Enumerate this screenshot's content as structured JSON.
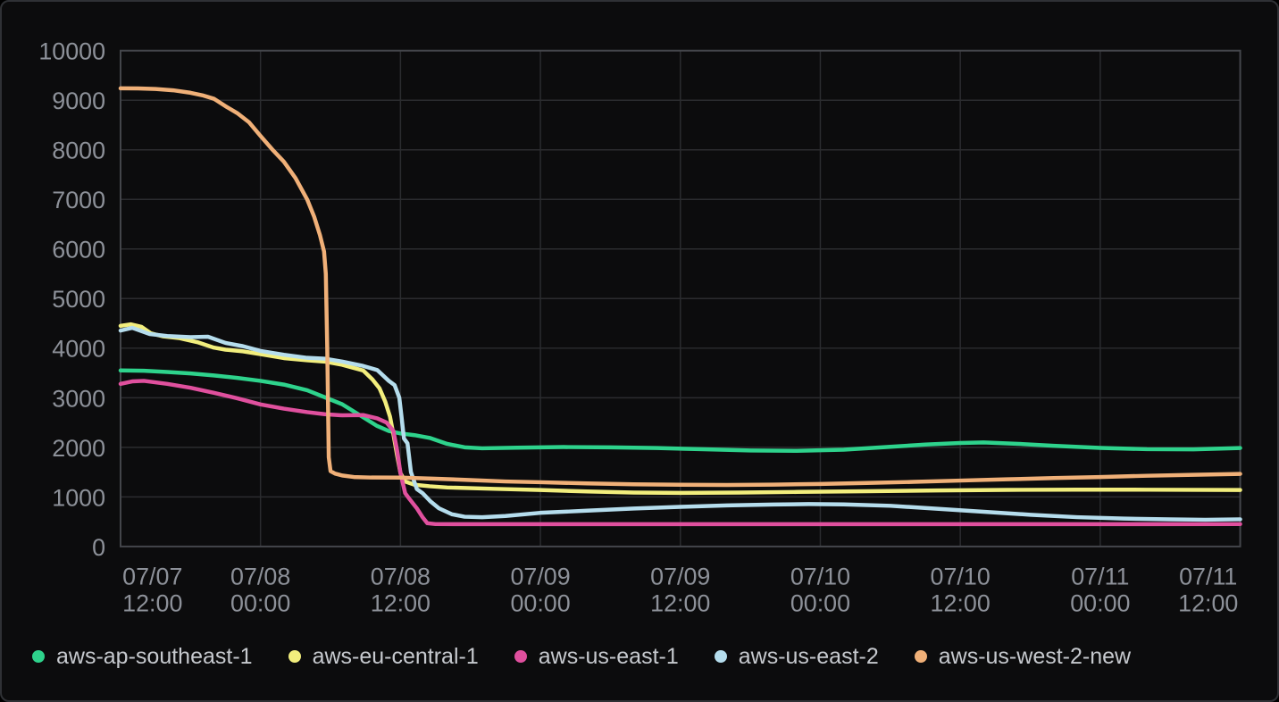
{
  "panel": {
    "background": "#0c0c0d",
    "border_color": "#2f3135",
    "grid_color": "#2b2c2f",
    "plot_border_color": "#44464b",
    "axis_text_color": "#8d9199",
    "legend_text_color": "#c6c9ce"
  },
  "chart_data": {
    "type": "line",
    "title": "",
    "xlabel": "",
    "ylabel": "",
    "grid": true,
    "legend_position": "bottom",
    "x_unit": "hours since 07/07 12:00",
    "x_range_hours": [
      0,
      96
    ],
    "y_range": [
      0,
      10000
    ],
    "y_ticks": [
      0,
      1000,
      2000,
      3000,
      4000,
      5000,
      6000,
      7000,
      8000,
      9000,
      10000
    ],
    "x_ticks": [
      {
        "hours": 0,
        "date": "07/07",
        "time": "12:00"
      },
      {
        "hours": 12,
        "date": "07/08",
        "time": "00:00"
      },
      {
        "hours": 24,
        "date": "07/08",
        "time": "12:00"
      },
      {
        "hours": 36,
        "date": "07/09",
        "time": "00:00"
      },
      {
        "hours": 48,
        "date": "07/09",
        "time": "12:00"
      },
      {
        "hours": 60,
        "date": "07/10",
        "time": "00:00"
      },
      {
        "hours": 72,
        "date": "07/10",
        "time": "12:00"
      },
      {
        "hours": 84,
        "date": "07/11",
        "time": "00:00"
      },
      {
        "hours": 96,
        "date": "07/11",
        "time": "12:00"
      }
    ],
    "series": [
      {
        "name": "aws-ap-southeast-1",
        "color": "#2ed38c",
        "points": [
          [
            0,
            3550
          ],
          [
            2,
            3545
          ],
          [
            4,
            3520
          ],
          [
            6,
            3490
          ],
          [
            8,
            3450
          ],
          [
            10,
            3400
          ],
          [
            12,
            3340
          ],
          [
            14,
            3265
          ],
          [
            16,
            3150
          ],
          [
            17.5,
            3010
          ],
          [
            19,
            2870
          ],
          [
            20.5,
            2650
          ],
          [
            22,
            2430
          ],
          [
            23,
            2330
          ],
          [
            24,
            2280
          ],
          [
            25.2,
            2245
          ],
          [
            26.5,
            2190
          ],
          [
            28,
            2070
          ],
          [
            29.5,
            2000
          ],
          [
            31,
            1980
          ],
          [
            34,
            1992
          ],
          [
            38,
            2005
          ],
          [
            42,
            2000
          ],
          [
            46,
            1985
          ],
          [
            50,
            1960
          ],
          [
            54,
            1938
          ],
          [
            58,
            1930
          ],
          [
            62,
            1952
          ],
          [
            66,
            2010
          ],
          [
            69,
            2055
          ],
          [
            72,
            2088
          ],
          [
            74,
            2098
          ],
          [
            77,
            2070
          ],
          [
            80,
            2030
          ],
          [
            84,
            1988
          ],
          [
            88,
            1962
          ],
          [
            92,
            1958
          ],
          [
            96,
            1985
          ]
        ]
      },
      {
        "name": "aws-eu-central-1",
        "color": "#f2ee7d",
        "points": [
          [
            0,
            4450
          ],
          [
            0.9,
            4480
          ],
          [
            1.8,
            4430
          ],
          [
            2.6,
            4300
          ],
          [
            3.6,
            4240
          ],
          [
            5,
            4205
          ],
          [
            6.6,
            4120
          ],
          [
            8,
            4010
          ],
          [
            9,
            3970
          ],
          [
            10.5,
            3935
          ],
          [
            12,
            3880
          ],
          [
            14,
            3800
          ],
          [
            16,
            3755
          ],
          [
            17.5,
            3730
          ],
          [
            19,
            3665
          ],
          [
            20.8,
            3550
          ],
          [
            21.6,
            3370
          ],
          [
            22.2,
            3190
          ],
          [
            22.7,
            2920
          ],
          [
            23.1,
            2620
          ],
          [
            23.4,
            2260
          ],
          [
            23.7,
            1850
          ],
          [
            24,
            1480
          ],
          [
            24.4,
            1310
          ],
          [
            25.2,
            1245
          ],
          [
            26.5,
            1215
          ],
          [
            28,
            1190
          ],
          [
            32,
            1163
          ],
          [
            36,
            1140
          ],
          [
            40,
            1110
          ],
          [
            44,
            1088
          ],
          [
            48,
            1080
          ],
          [
            53,
            1088
          ],
          [
            58,
            1100
          ],
          [
            64,
            1115
          ],
          [
            70,
            1130
          ],
          [
            76,
            1142
          ],
          [
            82,
            1147
          ],
          [
            88,
            1145
          ],
          [
            96,
            1140
          ]
        ]
      },
      {
        "name": "aws-us-east-1",
        "color": "#e0509e",
        "points": [
          [
            0,
            3280
          ],
          [
            1,
            3330
          ],
          [
            2,
            3340
          ],
          [
            4,
            3280
          ],
          [
            6,
            3200
          ],
          [
            8,
            3100
          ],
          [
            10,
            2990
          ],
          [
            12,
            2865
          ],
          [
            14,
            2780
          ],
          [
            16,
            2710
          ],
          [
            17.5,
            2668
          ],
          [
            19,
            2645
          ],
          [
            20.8,
            2650
          ],
          [
            22,
            2585
          ],
          [
            22.8,
            2500
          ],
          [
            23.4,
            2330
          ],
          [
            23.7,
            1950
          ],
          [
            24,
            1480
          ],
          [
            24.4,
            1075
          ],
          [
            24.8,
            950
          ],
          [
            25.4,
            770
          ],
          [
            25.9,
            590
          ],
          [
            26.3,
            470
          ],
          [
            27,
            452
          ],
          [
            32,
            450
          ],
          [
            40,
            450
          ],
          [
            48,
            450
          ],
          [
            56,
            450
          ],
          [
            64,
            450
          ],
          [
            72,
            450
          ],
          [
            80,
            450
          ],
          [
            88,
            450
          ],
          [
            96,
            452
          ]
        ]
      },
      {
        "name": "aws-us-east-2",
        "color": "#b5dded",
        "points": [
          [
            0,
            4355
          ],
          [
            1,
            4410
          ],
          [
            2.5,
            4285
          ],
          [
            4,
            4245
          ],
          [
            6,
            4222
          ],
          [
            7.5,
            4232
          ],
          [
            9,
            4105
          ],
          [
            10.5,
            4040
          ],
          [
            12,
            3945
          ],
          [
            14,
            3868
          ],
          [
            16,
            3805
          ],
          [
            17.5,
            3788
          ],
          [
            19,
            3730
          ],
          [
            20.8,
            3642
          ],
          [
            22,
            3560
          ],
          [
            23,
            3340
          ],
          [
            23.5,
            3255
          ],
          [
            23.9,
            3000
          ],
          [
            24.1,
            2600
          ],
          [
            24.3,
            2180
          ],
          [
            24.6,
            2080
          ],
          [
            24.9,
            1500
          ],
          [
            25.4,
            1160
          ],
          [
            25.9,
            1075
          ],
          [
            26.6,
            905
          ],
          [
            27.3,
            770
          ],
          [
            28.4,
            650
          ],
          [
            29.5,
            600
          ],
          [
            31,
            590
          ],
          [
            33,
            615
          ],
          [
            36,
            680
          ],
          [
            40,
            722
          ],
          [
            44,
            765
          ],
          [
            48,
            800
          ],
          [
            52,
            828
          ],
          [
            56,
            845
          ],
          [
            59,
            855
          ],
          [
            62,
            850
          ],
          [
            66,
            820
          ],
          [
            70,
            762
          ],
          [
            74,
            700
          ],
          [
            78,
            640
          ],
          [
            82,
            592
          ],
          [
            86,
            562
          ],
          [
            90,
            546
          ],
          [
            93,
            540
          ],
          [
            96,
            548
          ]
        ]
      },
      {
        "name": "aws-us-west-2-new",
        "color": "#f0b078",
        "points": [
          [
            0,
            9240
          ],
          [
            1.5,
            9238
          ],
          [
            3,
            9228
          ],
          [
            4.5,
            9200
          ],
          [
            6,
            9150
          ],
          [
            7,
            9100
          ],
          [
            8,
            9030
          ],
          [
            9,
            8880
          ],
          [
            10,
            8740
          ],
          [
            11,
            8560
          ],
          [
            12,
            8280
          ],
          [
            13,
            8010
          ],
          [
            14,
            7760
          ],
          [
            15,
            7430
          ],
          [
            16,
            7000
          ],
          [
            16.6,
            6650
          ],
          [
            17.1,
            6280
          ],
          [
            17.45,
            5950
          ],
          [
            17.6,
            5500
          ],
          [
            17.72,
            4000
          ],
          [
            17.85,
            1800
          ],
          [
            18,
            1520
          ],
          [
            18.4,
            1470
          ],
          [
            19,
            1432
          ],
          [
            20,
            1402
          ],
          [
            21.5,
            1390
          ],
          [
            24,
            1388
          ],
          [
            27,
            1368
          ],
          [
            30,
            1340
          ],
          [
            33,
            1312
          ],
          [
            36,
            1295
          ],
          [
            40,
            1272
          ],
          [
            44,
            1255
          ],
          [
            48,
            1245
          ],
          [
            52,
            1240
          ],
          [
            56,
            1247
          ],
          [
            60,
            1262
          ],
          [
            64,
            1282
          ],
          [
            68,
            1303
          ],
          [
            72,
            1330
          ],
          [
            76,
            1355
          ],
          [
            80,
            1380
          ],
          [
            84,
            1402
          ],
          [
            88,
            1426
          ],
          [
            92,
            1446
          ],
          [
            96,
            1465
          ]
        ]
      }
    ]
  }
}
